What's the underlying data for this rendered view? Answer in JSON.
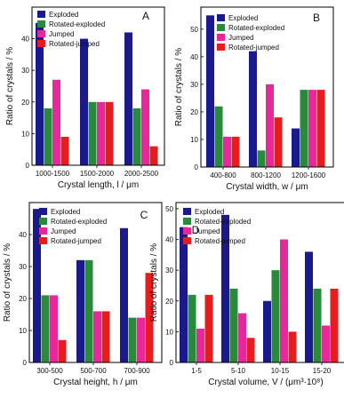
{
  "legend_labels": [
    "Exploded",
    "Rotated-exploded",
    "Jumped",
    "Rotated-jumped"
  ],
  "colors": [
    "#1a1a8c",
    "#2a8a3c",
    "#e8289a",
    "#e81c1c"
  ],
  "chart_data": [
    {
      "type": "bar",
      "panel_label": "A",
      "categories": [
        "1000-1500",
        "1500-2000",
        "2000-2500"
      ],
      "series": [
        {
          "name": "Exploded",
          "values": [
            45,
            40,
            42
          ]
        },
        {
          "name": "Rotated-exploded",
          "values": [
            18,
            20,
            18
          ]
        },
        {
          "name": "Jumped",
          "values": [
            27,
            20,
            24
          ]
        },
        {
          "name": "Rotated-jumped",
          "values": [
            9,
            20,
            6
          ]
        }
      ],
      "ylabel": "Ratio of crystals / %",
      "xlabel": "Crystal length, l / μm",
      "ylim": [
        0,
        50
      ],
      "yticks": [
        0,
        10,
        20,
        30,
        40
      ],
      "legend": "top-left",
      "grid": false
    },
    {
      "type": "bar",
      "panel_label": "B",
      "categories": [
        "400-800",
        "800-1200",
        "1200-1600"
      ],
      "series": [
        {
          "name": "Exploded",
          "values": [
            55,
            42,
            14
          ]
        },
        {
          "name": "Rotated-exploded",
          "values": [
            22,
            6,
            28
          ]
        },
        {
          "name": "Jumped",
          "values": [
            11,
            30,
            28
          ]
        },
        {
          "name": "Rotated-jumped",
          "values": [
            11,
            18,
            28
          ]
        }
      ],
      "ylabel": "Ratio of crystals / %",
      "xlabel": "Crystal width, w / μm",
      "ylim": [
        0,
        58
      ],
      "yticks": [
        0,
        10,
        20,
        30,
        40,
        50
      ],
      "legend": "top-right",
      "grid": false
    },
    {
      "type": "bar",
      "panel_label": "C",
      "categories": [
        "300-500",
        "500-700",
        "700-900"
      ],
      "series": [
        {
          "name": "Exploded",
          "values": [
            48,
            32,
            42
          ]
        },
        {
          "name": "Rotated-exploded",
          "values": [
            21,
            32,
            14
          ]
        },
        {
          "name": "Jumped",
          "values": [
            21,
            16,
            14
          ]
        },
        {
          "name": "Rotated-jumped",
          "values": [
            7,
            16,
            28
          ]
        }
      ],
      "ylabel": "Ratio of crystals / %",
      "xlabel": "Crystal height, h / μm",
      "ylim": [
        0,
        50
      ],
      "yticks": [
        0,
        10,
        20,
        30,
        40
      ],
      "legend": "top-right",
      "grid": false
    },
    {
      "type": "bar",
      "panel_label": "D",
      "categories": [
        "1-5",
        "5-10",
        "10-15",
        "15-20"
      ],
      "series": [
        {
          "name": "Exploded",
          "values": [
            44,
            48,
            20,
            36
          ]
        },
        {
          "name": "Rotated-exploded",
          "values": [
            22,
            24,
            30,
            24
          ]
        },
        {
          "name": "Jumped",
          "values": [
            11,
            16,
            40,
            12
          ]
        },
        {
          "name": "Rotated-jumped",
          "values": [
            22,
            8,
            10,
            24
          ]
        }
      ],
      "ylabel": "Ratio of crystals / %",
      "xlabel": "Crystal volume, V / (μm³·10⁸)",
      "ylim": [
        0,
        52
      ],
      "yticks": [
        0,
        10,
        20,
        30,
        40,
        50
      ],
      "legend": "top-right",
      "grid": false
    }
  ]
}
